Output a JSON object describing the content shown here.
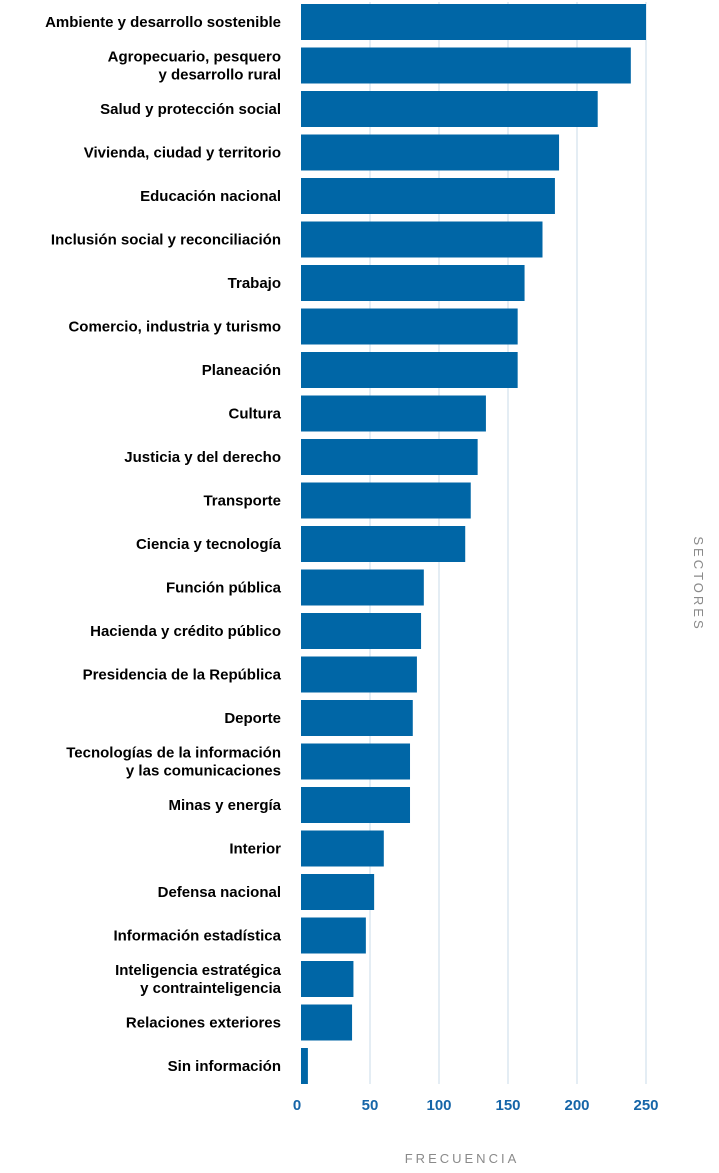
{
  "chart_data": {
    "type": "bar",
    "orientation": "horizontal",
    "categories": [
      [
        "Ambiente y desarrollo sostenible"
      ],
      [
        "Agropecuario, pesquero",
        "y desarrollo rural"
      ],
      [
        "Salud y protección social"
      ],
      [
        "Vivienda, ciudad y territorio"
      ],
      [
        "Educación nacional"
      ],
      [
        "Inclusión social y reconciliación"
      ],
      [
        "Trabajo"
      ],
      [
        "Comercio, industria y turismo"
      ],
      [
        "Planeación"
      ],
      [
        "Cultura"
      ],
      [
        "Justicia y del derecho"
      ],
      [
        "Transporte"
      ],
      [
        "Ciencia y tecnología"
      ],
      [
        "Función pública"
      ],
      [
        "Hacienda y crédito público"
      ],
      [
        "Presidencia de la República"
      ],
      [
        "Deporte"
      ],
      [
        "Tecnologías de la información",
        "y las comunicaciones"
      ],
      [
        "Minas y energía"
      ],
      [
        "Interior"
      ],
      [
        "Defensa nacional"
      ],
      [
        "Información estadística"
      ],
      [
        "Inteligencia estratégica",
        "y contrainteligencia"
      ],
      [
        "Relaciones exteriores"
      ],
      [
        "Sin información"
      ]
    ],
    "values": [
      250,
      239,
      215,
      187,
      184,
      175,
      162,
      157,
      157,
      134,
      128,
      123,
      119,
      89,
      87,
      84,
      81,
      79,
      79,
      60,
      53,
      47,
      38,
      37,
      5
    ],
    "xlabel": "FRECUENCIA",
    "ylabel": "SECTORES",
    "xlim": [
      0,
      250
    ],
    "xticks": [
      "0",
      "50",
      "100",
      "150",
      "200",
      "250"
    ],
    "grid": "vertical",
    "colors": {
      "bar": "#0066A6",
      "tick_label": "#1565A8",
      "gridline": "#c9dbe8",
      "axis_title": "#8a8a8a",
      "category_label": "#000000"
    }
  }
}
